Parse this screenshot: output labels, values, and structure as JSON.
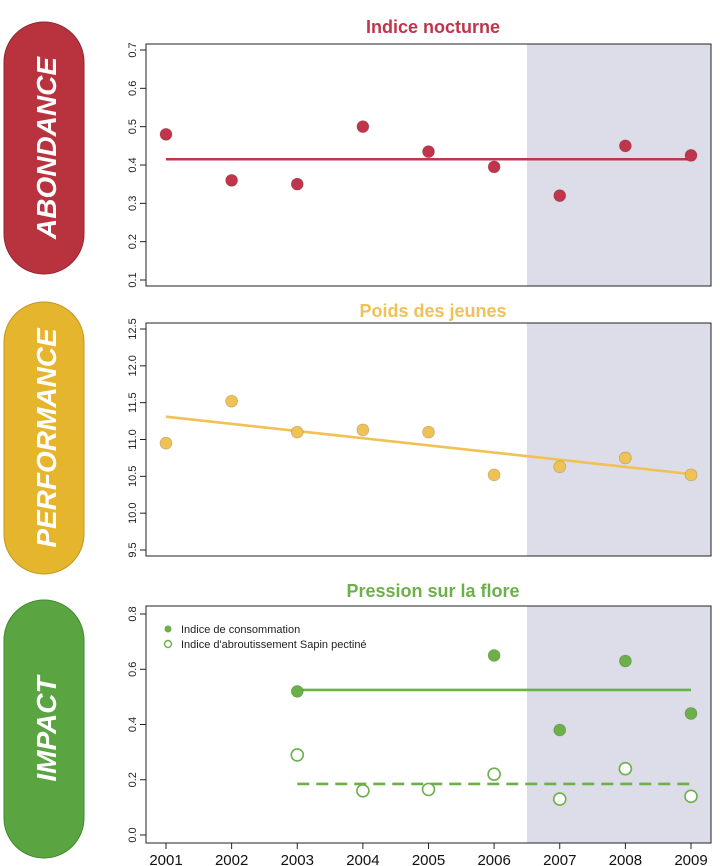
{
  "categories": {
    "abondance": "ABONDANCE",
    "performance": "PERFORMANCE",
    "impact": "IMPACT"
  },
  "colors": {
    "abondance": "#c0354a",
    "performance": "#f0c154",
    "impact": "#6cb04a",
    "shade": "#dcdde8",
    "pill_abondance": "#b8333e",
    "pill_performance": "#e6b52e",
    "pill_impact": "#5aa542"
  },
  "chart_data": [
    {
      "type": "scatter",
      "title": "Indice nocturne",
      "x": [
        2001,
        2002,
        2003,
        2004,
        2005,
        2006,
        2007,
        2008,
        2009
      ],
      "xlim": [
        2001,
        2009
      ],
      "ylim": [
        0.1,
        0.7
      ],
      "yticks": [
        "0.1",
        "0.2",
        "0.3",
        "0.4",
        "0.5",
        "0.6",
        "0.7"
      ],
      "shaded_from": 2006.5,
      "series": [
        {
          "values": [
            0.48,
            0.36,
            0.35,
            0.5,
            0.435,
            0.395,
            0.32,
            0.45,
            0.425
          ],
          "marker": "filled"
        }
      ],
      "trend_lines": [
        {
          "x": [
            2001,
            2009
          ],
          "y": [
            0.415,
            0.415
          ],
          "style": "solid"
        }
      ]
    },
    {
      "type": "scatter",
      "title": "Poids des jeunes",
      "x": [
        2001,
        2002,
        2003,
        2004,
        2005,
        2006,
        2007,
        2008,
        2009
      ],
      "xlim": [
        2001,
        2009
      ],
      "ylim": [
        9.5,
        12.5
      ],
      "yticks": [
        "9.5",
        "10.0",
        "10.5",
        "11.0",
        "11.5",
        "12.0",
        "12.5"
      ],
      "shaded_from": 2006.5,
      "series": [
        {
          "values": [
            10.95,
            11.52,
            11.1,
            11.13,
            11.1,
            10.52,
            10.63,
            10.75,
            10.52
          ],
          "marker": "filled"
        }
      ],
      "trend_lines": [
        {
          "x": [
            2001,
            2009
          ],
          "y": [
            11.31,
            10.53
          ],
          "style": "solid"
        }
      ]
    },
    {
      "type": "scatter",
      "title": "Pression sur la flore",
      "x": [
        2001,
        2002,
        2003,
        2004,
        2005,
        2006,
        2007,
        2008,
        2009
      ],
      "x_tick_labels": [
        "2001",
        "2002",
        "2003",
        "2004",
        "2005",
        "2006",
        "2007",
        "2008",
        "2009"
      ],
      "xlim": [
        2001,
        2009
      ],
      "ylim": [
        0.0,
        0.8
      ],
      "yticks": [
        "0.0",
        "0.2",
        "0.4",
        "0.6",
        "0.8"
      ],
      "shaded_from": 2006.5,
      "legend_position": "top-left",
      "series": [
        {
          "name": "Indice de consommation",
          "x": [
            2003,
            2006,
            2007,
            2008,
            2009
          ],
          "values": [
            0.52,
            0.65,
            0.38,
            0.63,
            0.44
          ],
          "marker": "filled"
        },
        {
          "name": "Indice d'abroutissement Sapin pectiné",
          "x": [
            2003,
            2004,
            2005,
            2006,
            2007,
            2008,
            2009
          ],
          "values": [
            0.29,
            0.16,
            0.165,
            0.22,
            0.13,
            0.24,
            0.14
          ],
          "marker": "open"
        }
      ],
      "trend_lines": [
        {
          "x": [
            2003,
            2009
          ],
          "y": [
            0.525,
            0.525
          ],
          "style": "solid"
        },
        {
          "x": [
            2003,
            2009
          ],
          "y": [
            0.185,
            0.185
          ],
          "style": "dashed"
        }
      ]
    }
  ]
}
